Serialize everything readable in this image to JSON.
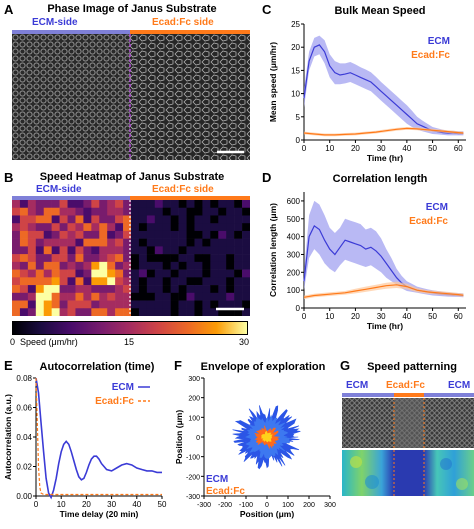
{
  "colors": {
    "ecm": "#3b3bd6",
    "ecad": "#ff7a1a",
    "ecm_band": "#9b9bf0",
    "ecad_band": "#ffc79a",
    "divider": "#b24bd6"
  },
  "panel_a": {
    "label": "A",
    "title": "Phase Image of Janus Substrate",
    "left_label": "ECM-side",
    "right_label": "Ecad:Fc side"
  },
  "panel_b": {
    "label": "B",
    "title": "Speed Heatmap of Janus Substrate",
    "left_label": "ECM-side",
    "right_label": "Ecad:Fc side",
    "colorbar_label": "Speed (μm/hr)",
    "colorbar_ticks": [
      "0",
      "15",
      "30"
    ]
  },
  "panel_c": {
    "label": "C",
    "title": "Bulk Mean Speed",
    "ylabel": "Mean speed (μm/hr)",
    "xlabel": "Time (hr)",
    "legend": [
      "ECM",
      "Ecad:Fc"
    ],
    "xticks": [
      "0",
      "10",
      "20",
      "30",
      "40",
      "50",
      "60"
    ],
    "yticks": [
      "0",
      "5",
      "10",
      "15",
      "20",
      "25"
    ]
  },
  "panel_d": {
    "label": "D",
    "title": "Correlation length",
    "ylabel": "Correlation length (μm)",
    "xlabel": "Time (hr)",
    "legend": [
      "ECM",
      "Ecad:Fc"
    ],
    "xticks": [
      "0",
      "10",
      "20",
      "30",
      "40",
      "50",
      "60"
    ],
    "yticks": [
      "0",
      "100",
      "200",
      "300",
      "400",
      "500",
      "600"
    ]
  },
  "panel_e": {
    "label": "E",
    "title": "Autocorrelation (time)",
    "ylabel": "Autocorrelation (a.u.)",
    "xlabel": "Time delay (20 min)",
    "legend": [
      "ECM",
      "Ecad:Fc"
    ],
    "xticks": [
      "0",
      "10",
      "20",
      "30",
      "40",
      "50"
    ],
    "yticks": [
      "0.00",
      "0.02",
      "0.04",
      "0.06",
      "0.08"
    ]
  },
  "panel_f": {
    "label": "F",
    "title": "Envelope of exploration",
    "ylabel": "Position (μm)",
    "xlabel": "Position (μm)",
    "legend": [
      "ECM",
      "Ecad:Fc"
    ],
    "xticks": [
      "-300",
      "-200",
      "-100",
      "0",
      "100",
      "200",
      "300"
    ],
    "yticks": [
      "-300",
      "-200",
      "-100",
      "0",
      "100",
      "200",
      "300"
    ]
  },
  "panel_g": {
    "label": "G",
    "title": "Speed patterning",
    "left_label": "ECM",
    "mid_label": "Ecad:Fc",
    "right_label": "ECM"
  },
  "chart_data": [
    {
      "panel": "C",
      "type": "line",
      "title": "Bulk Mean Speed",
      "xlabel": "Time (hr)",
      "ylabel": "Mean speed (μm/hr)",
      "xlim": [
        0,
        63
      ],
      "ylim": [
        0,
        25
      ],
      "legend_position": "top-right",
      "series": [
        {
          "name": "ECM",
          "x": [
            0,
            2,
            4,
            6,
            8,
            10,
            12,
            14,
            16,
            18,
            20,
            22,
            24,
            26,
            28,
            30,
            32,
            34,
            36,
            38,
            40,
            42,
            44,
            46,
            48,
            50,
            52,
            54,
            56,
            58,
            60,
            62
          ],
          "y": [
            9,
            17,
            20,
            20.5,
            19,
            16,
            14.5,
            14,
            14.2,
            14.5,
            14,
            13.5,
            13,
            12.5,
            11.5,
            10.5,
            9.5,
            8.5,
            7.5,
            6.5,
            5.5,
            4.5,
            3.5,
            3,
            2.5,
            2,
            1.8,
            1.6,
            1.5,
            1.5,
            1.4,
            1.4
          ],
          "lower": [
            7,
            15,
            18,
            18.5,
            16.5,
            13.5,
            12,
            12,
            12.2,
            12.5,
            12,
            11.5,
            11,
            10.5,
            9.5,
            8.5,
            7.5,
            6.5,
            5.5,
            4.5,
            3.5,
            2.8,
            2.2,
            1.9,
            1.6,
            1.3,
            1.2,
            1.1,
            1,
            1,
            1,
            1
          ],
          "upper": [
            11,
            19,
            22,
            22.5,
            21.5,
            18.5,
            17,
            16.5,
            16.5,
            16.8,
            16.3,
            15.7,
            15.2,
            14.6,
            13.6,
            12.5,
            11.5,
            10.5,
            9.5,
            8.5,
            7.5,
            6.3,
            5,
            4.2,
            3.5,
            2.8,
            2.5,
            2.2,
            2,
            2,
            1.9,
            1.9
          ]
        },
        {
          "name": "Ecad:Fc",
          "x": [
            0,
            4,
            8,
            12,
            16,
            20,
            24,
            28,
            32,
            36,
            40,
            44,
            48,
            52,
            56,
            60,
            62
          ],
          "y": [
            1.5,
            1.3,
            1.1,
            1.1,
            1.2,
            1.3,
            1.5,
            1.7,
            2,
            2.3,
            2.5,
            2.4,
            2.2,
            2,
            1.8,
            1.6,
            1.5
          ],
          "lower": [
            1.2,
            1,
            0.8,
            0.8,
            0.9,
            1,
            1.2,
            1.4,
            1.7,
            2,
            2.2,
            2.1,
            1.9,
            1.7,
            1.5,
            1.3,
            1.2
          ],
          "upper": [
            1.8,
            1.6,
            1.4,
            1.4,
            1.5,
            1.6,
            1.8,
            2,
            2.3,
            2.6,
            2.8,
            2.7,
            2.5,
            2.3,
            2.1,
            1.9,
            1.8
          ]
        }
      ]
    },
    {
      "panel": "D",
      "type": "line",
      "title": "Correlation length",
      "xlabel": "Time (hr)",
      "ylabel": "Correlation length (μm)",
      "xlim": [
        0,
        63
      ],
      "ylim": [
        0,
        650
      ],
      "legend_position": "top-right",
      "series": [
        {
          "name": "ECM",
          "x": [
            0,
            2,
            4,
            6,
            8,
            10,
            12,
            14,
            16,
            18,
            20,
            22,
            24,
            26,
            28,
            30,
            32,
            34,
            36,
            38,
            40,
            42,
            44,
            46,
            48,
            50,
            52,
            54,
            56,
            58,
            60,
            62
          ],
          "y": [
            150,
            400,
            460,
            440,
            380,
            330,
            300,
            340,
            380,
            370,
            360,
            350,
            330,
            340,
            320,
            290,
            250,
            210,
            170,
            140,
            120,
            110,
            100,
            95,
            90,
            85,
            80,
            78,
            75,
            73,
            72,
            70
          ],
          "lower": [
            100,
            280,
            330,
            300,
            250,
            220,
            200,
            240,
            270,
            260,
            250,
            240,
            230,
            240,
            220,
            200,
            170,
            150,
            130,
            110,
            95,
            90,
            85,
            80,
            75,
            70,
            68,
            66,
            64,
            63,
            62,
            60
          ],
          "upper": [
            200,
            520,
            600,
            580,
            520,
            450,
            420,
            450,
            500,
            490,
            480,
            470,
            440,
            450,
            430,
            390,
            330,
            280,
            220,
            180,
            150,
            135,
            120,
            112,
            105,
            100,
            95,
            92,
            88,
            85,
            84,
            82
          ]
        },
        {
          "name": "Ecad:Fc",
          "x": [
            0,
            4,
            8,
            12,
            16,
            20,
            24,
            28,
            32,
            36,
            40,
            44,
            48,
            52,
            56,
            60,
            62
          ],
          "y": [
            60,
            70,
            75,
            80,
            85,
            95,
            105,
            115,
            125,
            130,
            120,
            100,
            90,
            85,
            80,
            75,
            72
          ],
          "lower": [
            50,
            60,
            65,
            70,
            75,
            82,
            90,
            100,
            108,
            112,
            105,
            88,
            80,
            75,
            70,
            66,
            63
          ],
          "upper": [
            70,
            80,
            85,
            90,
            95,
            108,
            120,
            130,
            142,
            148,
            135,
            112,
            100,
            95,
            90,
            84,
            81
          ]
        }
      ]
    },
    {
      "panel": "E",
      "type": "line",
      "title": "Autocorrelation (time)",
      "xlabel": "Time delay (20 min)",
      "ylabel": "Autocorrelation (a.u.)",
      "xlim": [
        0,
        50
      ],
      "ylim": [
        0,
        0.08
      ],
      "legend_position": "top-right",
      "series": [
        {
          "name": "ECM",
          "x": [
            0,
            1,
            2,
            3,
            4,
            5,
            6,
            7,
            8,
            9,
            10,
            11,
            12,
            13,
            14,
            15,
            16,
            17,
            18,
            19,
            20,
            21,
            22,
            23,
            24,
            25,
            26,
            27,
            28,
            30,
            32,
            34,
            36,
            38,
            40,
            42,
            44,
            46,
            48,
            50
          ],
          "y": [
            0.08,
            0.07,
            0.05,
            0.03,
            0.012,
            0.002,
            -0.001,
            0.004,
            0.012,
            0.022,
            0.03,
            0.035,
            0.037,
            0.035,
            0.03,
            0.024,
            0.018,
            0.013,
            0.011,
            0.012,
            0.016,
            0.021,
            0.025,
            0.027,
            0.027,
            0.025,
            0.022,
            0.02,
            0.018,
            0.017,
            0.019,
            0.021,
            0.022,
            0.021,
            0.019,
            0.018,
            0.017,
            0.017,
            0.016,
            0.016
          ]
        },
        {
          "name": "Ecad:Fc",
          "x": [
            0,
            0.5,
            1,
            1.5,
            2,
            3,
            4,
            6,
            8,
            10,
            15,
            20,
            25,
            30,
            35,
            40,
            45,
            50
          ],
          "y": [
            0.08,
            0.05,
            0.02,
            0.006,
            0.002,
            0.001,
            0.001,
            0.001,
            0.001,
            0.001,
            0.001,
            0.001,
            0.001,
            0.001,
            0.001,
            0.001,
            0.001,
            0.001
          ]
        }
      ]
    },
    {
      "panel": "F",
      "type": "scatter",
      "title": "Envelope of exploration",
      "xlabel": "Position (μm)",
      "ylabel": "Position (μm)",
      "xlim": [
        -300,
        300
      ],
      "ylim": [
        -300,
        300
      ],
      "legend_position": "bottom-left",
      "series": [
        {
          "name": "ECM",
          "envelope_radius": 130
        },
        {
          "name": "Ecad:Fc",
          "envelope_radius": 45
        }
      ]
    }
  ]
}
